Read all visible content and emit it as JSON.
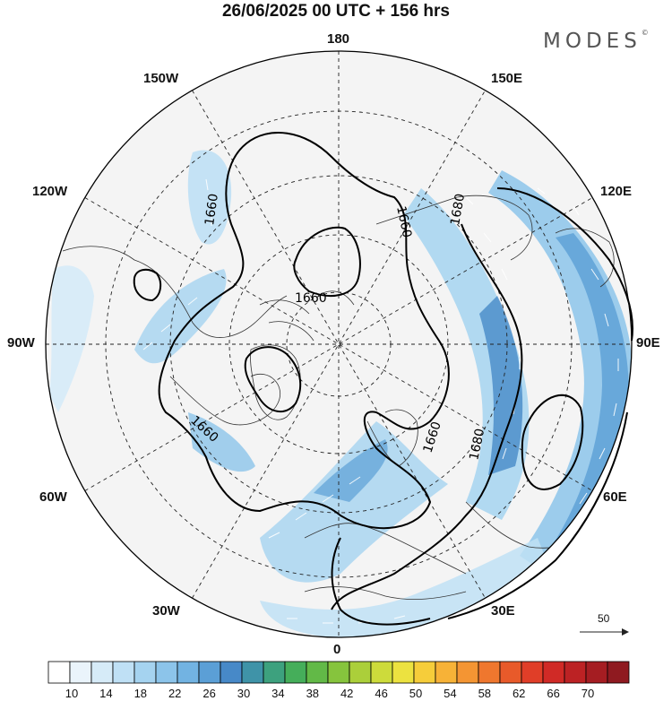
{
  "title": "26/06/2025  00 UTC  + 156 hrs",
  "brand": "MODES",
  "brand_mark": "©",
  "longitude_labels": {
    "top": "180",
    "bottom": "0",
    "left": "90W",
    "right": "90E",
    "nw1": "150W",
    "nw2": "120W",
    "ne1": "150E",
    "ne2": "120E",
    "sw1": "60W",
    "sw2": "30W",
    "se1": "60E",
    "se2": "30E"
  },
  "contour_labels": [
    "1660",
    "1660",
    "1660",
    "1680",
    "1660",
    "1680",
    "1660"
  ],
  "vector_scale": {
    "label": "50",
    "reference_speed": 50
  },
  "colorbar": {
    "tick_labels": [
      "10",
      "14",
      "18",
      "22",
      "26",
      "30",
      "34",
      "38",
      "42",
      "46",
      "50",
      "54",
      "58",
      "62",
      "66",
      "70"
    ],
    "colors": [
      "#ffffff",
      "#eaf4fb",
      "#d6ebf8",
      "#bfe0f5",
      "#a5d3f0",
      "#8cc4ea",
      "#72b3e2",
      "#5b9fd6",
      "#4789c8",
      "#3f93a8",
      "#3da17e",
      "#45ae5a",
      "#62b947",
      "#86c43d",
      "#abcf3a",
      "#cddb3b",
      "#ece240",
      "#f6cd3a",
      "#f7b237",
      "#f49533",
      "#ef772e",
      "#e85a2a",
      "#e03e28",
      "#d02a26",
      "#bc2224",
      "#a51d22",
      "#8f1a20"
    ]
  }
}
